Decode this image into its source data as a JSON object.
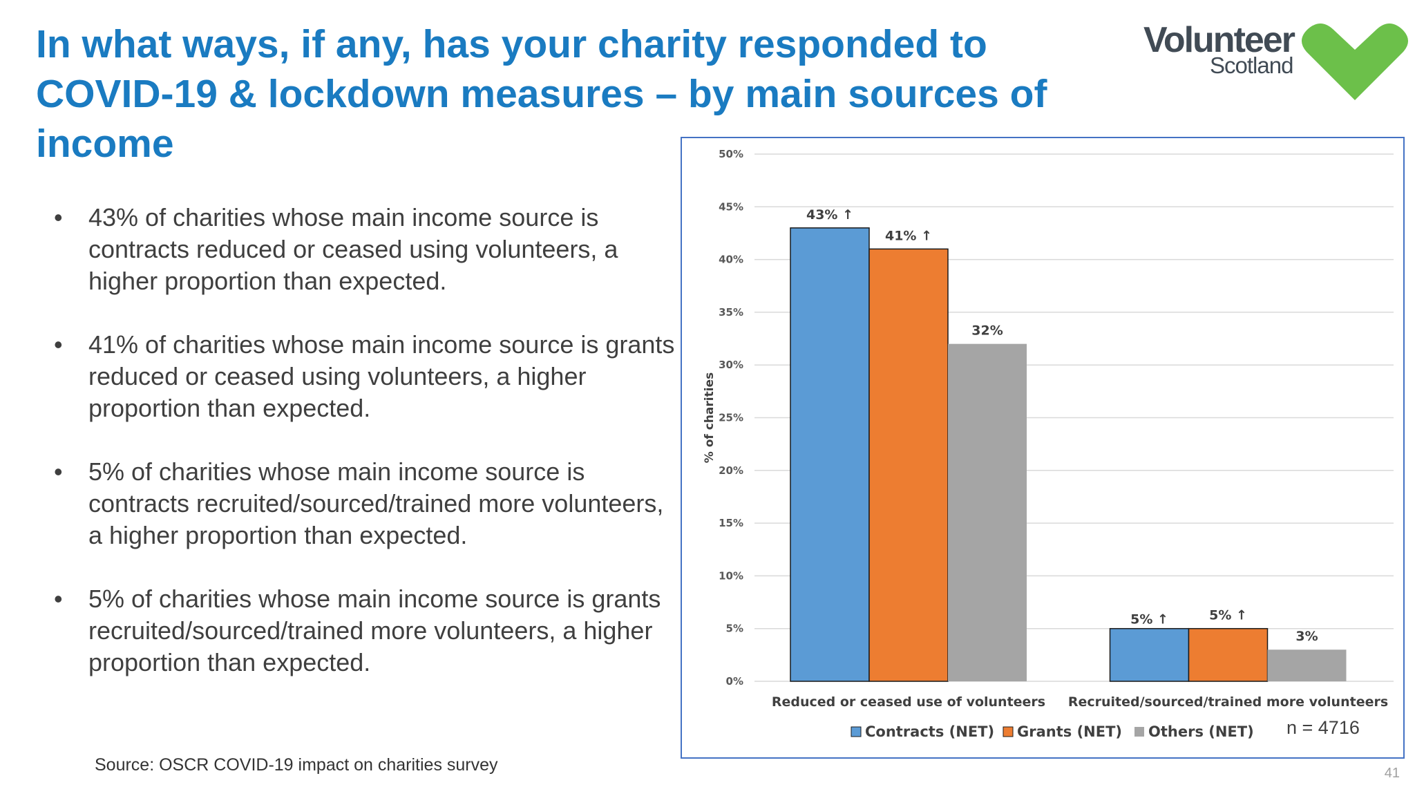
{
  "slide": {
    "title": "In what ways, if any, has your charity responded to COVID-19 & lockdown measures – by main sources of income",
    "bullets": [
      "43% of charities whose main income source is contracts reduced or ceased using volunteers, a higher proportion than expected.",
      " 41% of charities whose main income source is grants reduced or ceased using volunteers, a higher proportion than expected.",
      "5% of charities whose main income source is contracts recruited/sourced/trained more volunteers, a higher proportion than expected.",
      " 5% of charities whose main income source is grants recruited/sourced/trained more volunteers, a higher proportion than expected."
    ],
    "bullet_glyph": "•",
    "source": "Source: OSCR COVID-19 impact on charities survey",
    "page_number": "41"
  },
  "logo": {
    "line1": "Volunteer",
    "line2": "Scotland",
    "icon": "green-heart-icon",
    "color": "#6cc04a"
  },
  "chart_data": {
    "type": "bar",
    "categories": [
      "Reduced or ceased use of volunteers",
      "Recruited/sourced/trained more volunteers"
    ],
    "series": [
      {
        "name": "Contracts (NET)",
        "values": [
          43,
          5
        ],
        "labels": [
          "43% ↑",
          "5% ↑"
        ],
        "color": "#5b9bd5"
      },
      {
        "name": "Grants (NET)",
        "values": [
          41,
          5
        ],
        "labels": [
          "41% ↑",
          "5% ↑"
        ],
        "color": "#ed7d31"
      },
      {
        "name": "Others (NET)",
        "values": [
          32,
          3
        ],
        "labels": [
          "32%",
          "3%"
        ],
        "color": "#a5a5a5"
      }
    ],
    "ylabel": "% of charities",
    "ylim": [
      0,
      50
    ],
    "yticks": [
      0,
      5,
      10,
      15,
      20,
      25,
      30,
      35,
      40,
      45,
      50
    ],
    "ytick_labels": [
      "0%",
      "5%",
      "10%",
      "15%",
      "20%",
      "25%",
      "30%",
      "35%",
      "40%",
      "45%",
      "50%"
    ],
    "grid": true,
    "legend_position": "bottom",
    "annotation": "n = 4716"
  }
}
